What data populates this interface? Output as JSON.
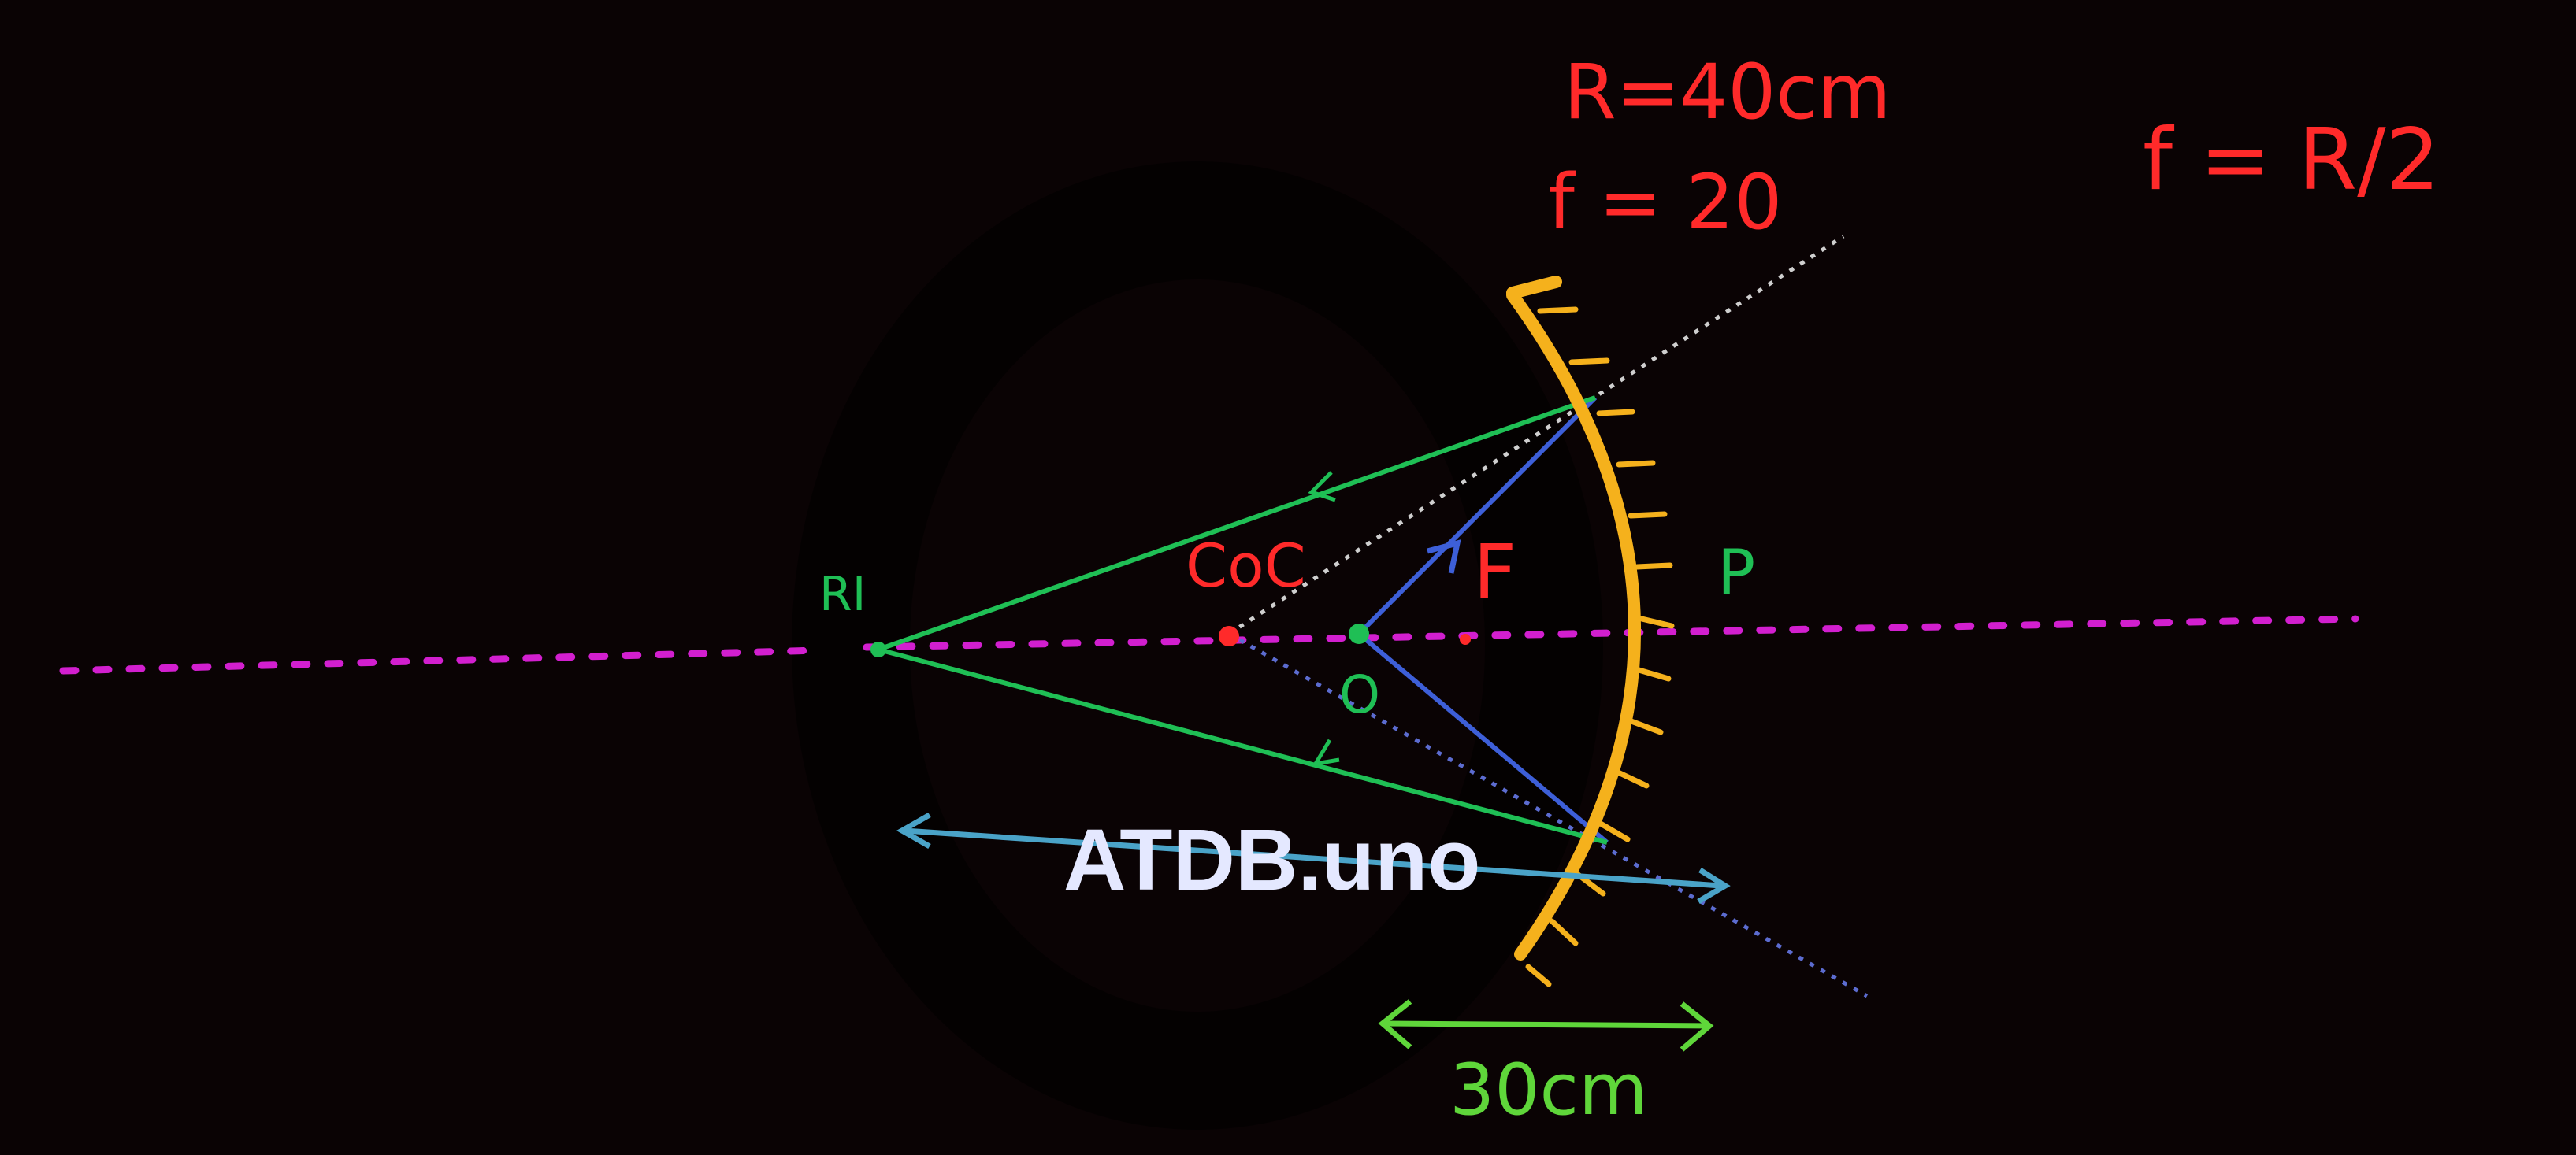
{
  "labels": {
    "radius": "R=40cm",
    "focal": "f = 20",
    "formula": "f = R/2",
    "image_point": "RI",
    "center_of_curvature": "CoC",
    "focus": "F",
    "pole": "P",
    "object": "O",
    "distance": "30cm"
  },
  "watermark": "ATDB.uno",
  "colors": {
    "background": "#0a0304",
    "annotation": "#ff2a2a",
    "principal_axis": "#d21fcf",
    "mirror": "#f5b11c",
    "rays_reflected": "#1fbf55",
    "rays_incident": "#3d5fd8",
    "object_arrow": "#4aa3c8",
    "dimension": "#5fd63a",
    "normal_dotted": "#cfcfcf",
    "watermark": "#e4e8ff"
  },
  "icons": [
    "concave-mirror-icon",
    "object-arrow-icon"
  ]
}
